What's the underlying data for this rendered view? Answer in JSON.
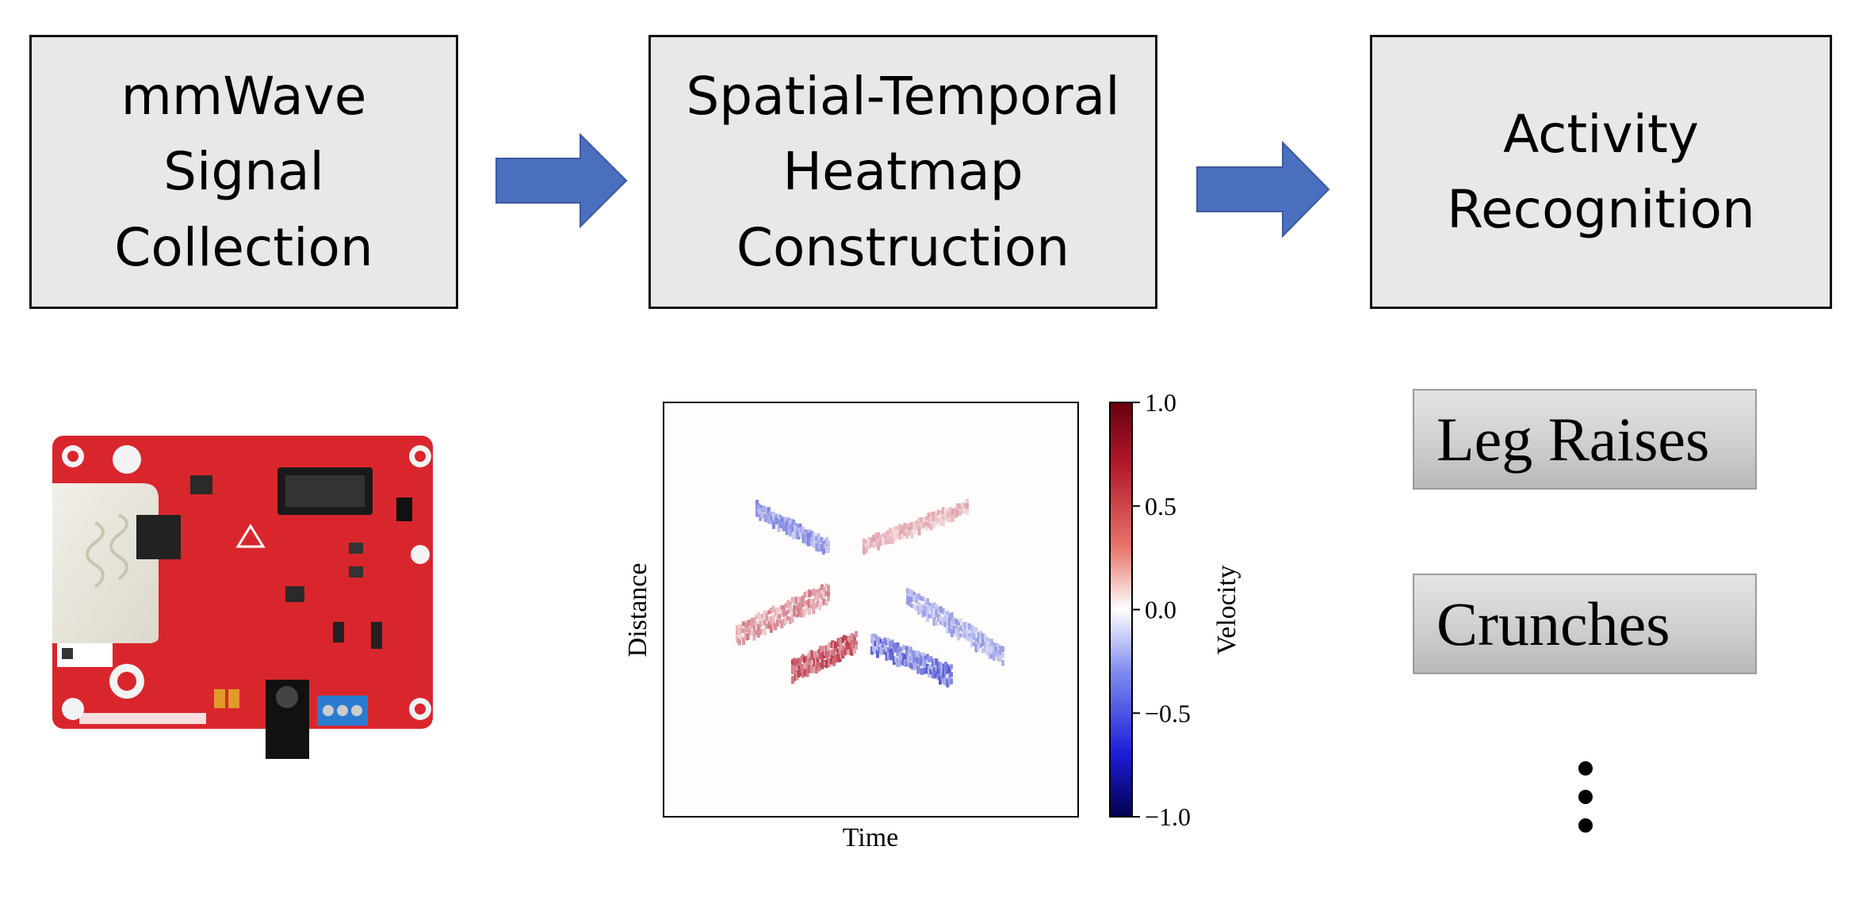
{
  "stages": [
    {
      "label": "mmWave\nSignal\nCollection"
    },
    {
      "label": "Spatial-Temporal\nHeatmap\nConstruction"
    },
    {
      "label": "Activity\nRecognition"
    }
  ],
  "activities": [
    "Leg Raises",
    "Crunches"
  ],
  "more_indicator": "⋮",
  "colors": {
    "box_fill": "#e8e8e8",
    "arrow_fill": "#4a6fbf",
    "board_red": "#d9262c",
    "heat_pos": "#b2182b",
    "heat_neg": "#2640c8"
  },
  "chart_data": {
    "type": "heatmap",
    "xlabel": "Time",
    "ylabel": "Distance",
    "colorbar": {
      "label": "Velocity",
      "range": [
        -1.0,
        1.0
      ],
      "ticks": [
        "1.0",
        "0.5",
        "0.0",
        "−0.5",
        "−1.0"
      ],
      "colormap": "seismic"
    },
    "blobs": [
      {
        "name": "upper-left",
        "velocity": -0.6
      },
      {
        "name": "upper-right",
        "velocity": 0.4
      },
      {
        "name": "middle-left",
        "velocity": 0.6
      },
      {
        "name": "middle-right",
        "velocity": -0.5
      },
      {
        "name": "lower-left",
        "velocity": 0.9
      },
      {
        "name": "lower-right",
        "velocity": -0.8
      }
    ]
  }
}
